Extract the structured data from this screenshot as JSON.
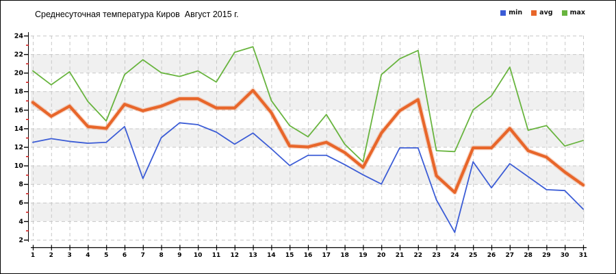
{
  "title": "Среднесуточная температура Киров  Август 2015 г.",
  "legend": {
    "position": "top-right",
    "items": [
      {
        "label": "min",
        "color": "#3b5cd6"
      },
      {
        "label": "avg",
        "color": "#e8662a"
      },
      {
        "label": "max",
        "color": "#68b43e"
      }
    ]
  },
  "chart_data": {
    "type": "line",
    "title": "Среднесуточная температура Киров  Август 2015 г.",
    "xlabel": "",
    "ylabel": "",
    "x": [
      1,
      2,
      3,
      4,
      5,
      6,
      7,
      8,
      9,
      10,
      11,
      12,
      13,
      14,
      15,
      16,
      17,
      18,
      19,
      20,
      21,
      22,
      23,
      24,
      25,
      26,
      27,
      28,
      29,
      30,
      31
    ],
    "ylim": [
      2,
      24
    ],
    "ytick_step": 2,
    "ytick_labels": [
      "2",
      "4",
      "6",
      "8",
      "10",
      "12",
      "14",
      "16",
      "18",
      "20",
      "22",
      "24"
    ],
    "grid": "dashed-both-axes",
    "legend_position": "top-right",
    "series": [
      {
        "name": "min",
        "color": "#3b5cd6",
        "values": [
          12.5,
          12.9,
          12.6,
          12.4,
          12.5,
          14.2,
          8.6,
          13.0,
          14.6,
          14.4,
          13.6,
          12.3,
          13.5,
          11.8,
          10.0,
          11.1,
          11.1,
          10.1,
          9.0,
          8.0,
          11.9,
          11.9,
          6.3,
          2.8,
          10.4,
          7.6,
          10.2,
          8.8,
          7.4,
          7.3,
          5.3
        ]
      },
      {
        "name": "avg",
        "color": "#e8662a",
        "values": [
          16.8,
          15.3,
          16.4,
          14.2,
          14.0,
          16.6,
          15.9,
          16.4,
          17.2,
          17.2,
          16.2,
          16.2,
          18.1,
          15.7,
          12.1,
          12.0,
          12.5,
          11.4,
          9.8,
          13.5,
          15.9,
          17.1,
          8.9,
          7.1,
          11.9,
          11.9,
          14.0,
          11.6,
          10.9,
          9.3,
          7.9
        ]
      },
      {
        "name": "max",
        "color": "#68b43e",
        "values": [
          20.2,
          18.7,
          20.1,
          16.9,
          14.8,
          19.8,
          21.4,
          20.0,
          19.6,
          20.2,
          19.0,
          22.2,
          22.8,
          17.0,
          14.3,
          13.1,
          15.5,
          12.3,
          10.4,
          19.8,
          21.5,
          22.4,
          11.6,
          11.5,
          16.0,
          17.5,
          20.6,
          13.8,
          14.3,
          12.1,
          12.7
        ]
      }
    ],
    "style_colors": {
      "gridline": "#c8c8c8",
      "axis": "#000000",
      "minor_tick": "#cc0000",
      "band_fill": "#f0f0f0",
      "plot_background": "#ffffff"
    }
  }
}
